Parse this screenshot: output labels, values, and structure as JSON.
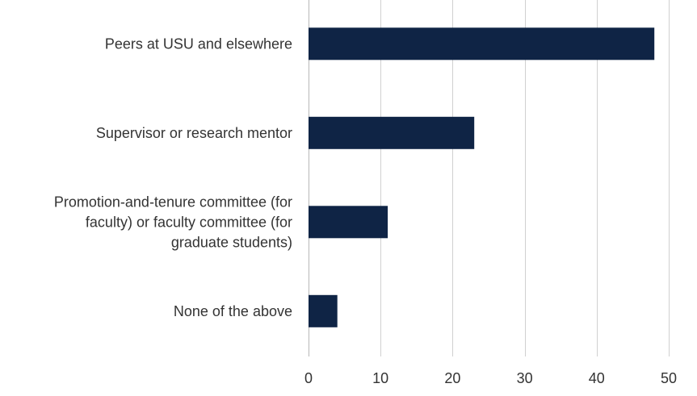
{
  "chart_data": {
    "type": "bar",
    "orientation": "horizontal",
    "categories": [
      "Peers at USU and elsewhere",
      "Supervisor or research mentor",
      "Promotion-and-tenure committee (for faculty) or faculty committee (for graduate students)",
      "None of the above"
    ],
    "category_label_lines": [
      [
        "Peers at USU and elsewhere"
      ],
      [
        "Supervisor or research mentor"
      ],
      [
        "Promotion-and-tenure committee (for",
        "faculty) or faculty committee (for",
        "graduate students)"
      ],
      [
        "None of the above"
      ]
    ],
    "values": [
      48,
      23,
      11,
      4
    ],
    "xlim": [
      0,
      50
    ],
    "xticks": [
      0,
      10,
      20,
      30,
      40,
      50
    ],
    "title": "",
    "xlabel": "",
    "ylabel": "",
    "grid": true,
    "legend": "none",
    "bar_color": "#0f2445"
  }
}
